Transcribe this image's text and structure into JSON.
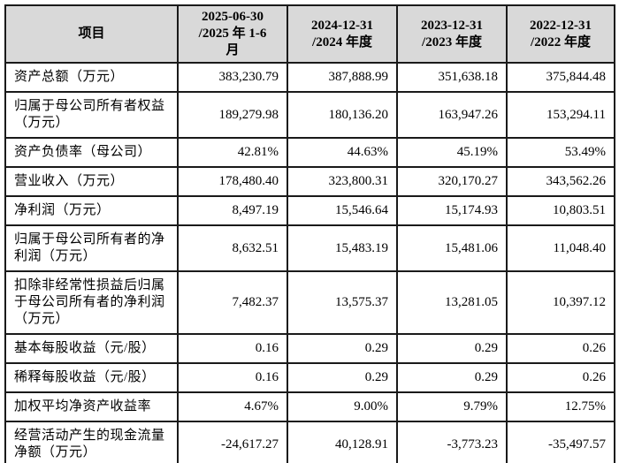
{
  "colors": {
    "header_bg": "#d9d9d9",
    "border": "#1a1a1a",
    "text": "#000000",
    "page_bg": "#ffffff"
  },
  "table": {
    "item_header": "项目",
    "col_headers": [
      {
        "lines": [
          "2025-06-30",
          "/2025 年 1-6",
          "月"
        ]
      },
      {
        "lines": [
          "2024-12-31",
          "/2024 年度"
        ]
      },
      {
        "lines": [
          "2023-12-31",
          "/2023 年度"
        ]
      },
      {
        "lines": [
          "2022-12-31",
          "/2022 年度"
        ]
      }
    ],
    "rows": [
      {
        "label": "资产总额（万元）",
        "values": [
          "383,230.79",
          "387,888.99",
          "351,638.18",
          "375,844.48"
        ]
      },
      {
        "label": "归属于母公司所有者权益（万元）",
        "values": [
          "189,279.98",
          "180,136.20",
          "163,947.26",
          "153,294.11"
        ]
      },
      {
        "label": "资产负债率（母公司）",
        "values": [
          "42.81%",
          "44.63%",
          "45.19%",
          "53.49%"
        ]
      },
      {
        "label": "营业收入（万元）",
        "values": [
          "178,480.40",
          "323,800.31",
          "320,170.27",
          "343,562.26"
        ]
      },
      {
        "label": "净利润（万元）",
        "values": [
          "8,497.19",
          "15,546.64",
          "15,174.93",
          "10,803.51"
        ]
      },
      {
        "label": "归属于母公司所有者的净利润（万元）",
        "values": [
          "8,632.51",
          "15,483.19",
          "15,481.06",
          "11,048.40"
        ]
      },
      {
        "label": "扣除非经常性损益后归属于母公司所有者的净利润（万元）",
        "values": [
          "7,482.37",
          "13,575.37",
          "13,281.05",
          "10,397.12"
        ]
      },
      {
        "label": "基本每股收益（元/股）",
        "values": [
          "0.16",
          "0.29",
          "0.29",
          "0.26"
        ]
      },
      {
        "label": "稀释每股收益（元/股）",
        "values": [
          "0.16",
          "0.29",
          "0.29",
          "0.26"
        ]
      },
      {
        "label": "加权平均净资产收益率",
        "values": [
          "4.67%",
          "9.00%",
          "9.79%",
          "12.75%"
        ]
      },
      {
        "label": "经营活动产生的现金流量净额（万元）",
        "values": [
          "-24,617.27",
          "40,128.91",
          "-3,773.23",
          "-35,497.57"
        ]
      }
    ]
  }
}
